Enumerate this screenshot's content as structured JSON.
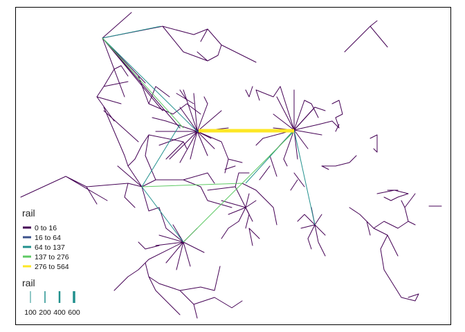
{
  "color_legend": {
    "title": "rail",
    "items": [
      {
        "label": "0 to 16",
        "color": "#440154"
      },
      {
        "label": "16 to 64",
        "color": "#3b528b"
      },
      {
        "label": "64 to 137",
        "color": "#21908d"
      },
      {
        "label": "137 to 276",
        "color": "#5dc963"
      },
      {
        "label": "276 to 564",
        "color": "#fde725"
      }
    ]
  },
  "width_legend": {
    "title": "rail",
    "items": [
      {
        "label": "100",
        "value": 100
      },
      {
        "label": "200",
        "value": 200
      },
      {
        "label": "400",
        "value": 400
      },
      {
        "label": "600",
        "value": 600
      }
    ],
    "color": "#21908d"
  }
}
